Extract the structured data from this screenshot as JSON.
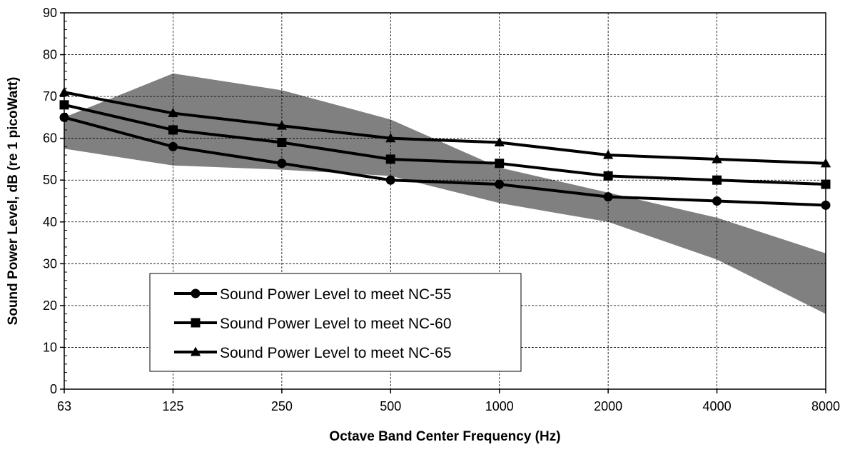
{
  "chart_data": {
    "type": "line",
    "xlabel": "Octave Band Center Frequency (Hz)",
    "ylabel": "Sound Power Level, dB (re 1 picoWatt)",
    "categories": [
      "63",
      "125",
      "250",
      "500",
      "1000",
      "2000",
      "4000",
      "8000"
    ],
    "ylim": [
      0,
      90
    ],
    "yticks": [
      0,
      10,
      20,
      30,
      40,
      50,
      60,
      70,
      80,
      90
    ],
    "grid": true,
    "legend_position": "bottom-left",
    "series": [
      {
        "name": "Sound Power Level to meet NC-55",
        "marker": "circle",
        "values": [
          65,
          58,
          54,
          50,
          49,
          46,
          45,
          44
        ]
      },
      {
        "name": "Sound Power Level to meet NC-60",
        "marker": "square",
        "values": [
          68,
          62,
          59,
          55,
          54,
          51,
          50,
          49
        ]
      },
      {
        "name": "Sound Power Level to meet NC-65",
        "marker": "triangle",
        "values": [
          71,
          66,
          63,
          60,
          59,
          56,
          55,
          54
        ]
      }
    ],
    "band": {
      "upper": [
        65,
        75.5,
        71.5,
        64.5,
        53,
        47,
        41,
        32.5
      ],
      "lower": [
        57.5,
        53.5,
        52.5,
        51,
        44.5,
        40,
        31,
        18
      ]
    },
    "colors": {
      "band": "#808080",
      "line": "#000000",
      "grid": "#000000"
    }
  }
}
